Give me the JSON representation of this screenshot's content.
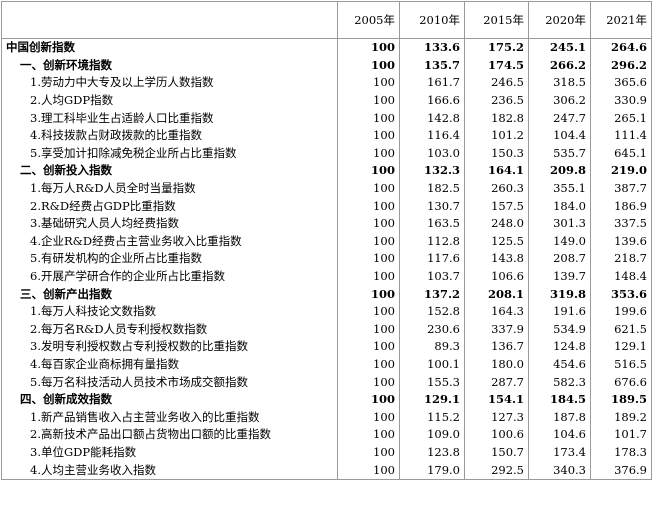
{
  "table": {
    "header": [
      "2005年",
      "2010年",
      "2015年",
      "2020年",
      "2021年"
    ],
    "rows": [
      [
        "中国创新指数",
        "100",
        "133.6",
        "175.2",
        "245.1",
        "264.6"
      ],
      [
        "一、创新环境指数",
        "100",
        "135.7",
        "174.5",
        "266.2",
        "296.2"
      ],
      [
        "1.劳动力中大专及以上学历人数指数",
        "100",
        "161.7",
        "246.5",
        "318.5",
        "365.6"
      ],
      [
        "2.人均GDP指数",
        "100",
        "166.6",
        "236.5",
        "306.2",
        "330.9"
      ],
      [
        "3.理工科毕业生占适龄人口比重指数",
        "100",
        "142.8",
        "182.8",
        "247.7",
        "265.1"
      ],
      [
        "4.科技拨款占财政拨款的比重指数",
        "100",
        "116.4",
        "101.2",
        "104.4",
        "111.4"
      ],
      [
        "5.享受加计扣除减免税企业所占比重指数",
        "100",
        "103.0",
        "150.3",
        "535.7",
        "645.1"
      ],
      [
        "二、创新投入指数",
        "100",
        "132.3",
        "164.1",
        "209.8",
        "219.0"
      ],
      [
        "1.每万人R&D人员全时当量指数",
        "100",
        "182.5",
        "260.3",
        "355.1",
        "387.7"
      ],
      [
        "2.R&D经费占GDP比重指数",
        "100",
        "130.7",
        "157.5",
        "184.0",
        "186.9"
      ],
      [
        "3.基础研究人员人均经费指数",
        "100",
        "163.5",
        "248.0",
        "301.3",
        "337.5"
      ],
      [
        "4.企业R&D经费占主营业务收入比重指数",
        "100",
        "112.8",
        "125.5",
        "149.0",
        "139.6"
      ],
      [
        "5.有研发机构的企业所占比重指数",
        "100",
        "117.6",
        "143.8",
        "208.7",
        "218.7"
      ],
      [
        "6.开展产学研合作的企业所占比重指数",
        "100",
        "103.7",
        "106.6",
        "139.7",
        "148.4"
      ],
      [
        "三、创新产出指数",
        "100",
        "137.2",
        "208.1",
        "319.8",
        "353.6"
      ],
      [
        "1.每万人科技论文数指数",
        "100",
        "152.8",
        "164.3",
        "191.6",
        "199.6"
      ],
      [
        "2.每万名R&D人员专利授权数指数",
        "100",
        "230.6",
        "337.9",
        "534.9",
        "621.5"
      ],
      [
        "3.发明专利授权数占专利授权数的比重指数",
        "100",
        "89.3",
        "136.7",
        "124.8",
        "129.1"
      ],
      [
        "4.每百家企业商标拥有量指数",
        "100",
        "100.1",
        "180.0",
        "454.6",
        "516.5"
      ],
      [
        "5.每万名科技活动人员技术市场成交额指数",
        "100",
        "155.3",
        "287.7",
        "582.3",
        "676.6"
      ],
      [
        "四、创新成效指数",
        "100",
        "129.1",
        "154.1",
        "184.5",
        "189.5"
      ],
      [
        "1.新产品销售收入占主营业务收入的比重指数",
        "100",
        "115.2",
        "127.3",
        "187.8",
        "189.2"
      ],
      [
        "2.高新技术产品出口额占货物出口额的比重指数",
        "100",
        "109.0",
        "100.6",
        "104.6",
        "101.7"
      ],
      [
        "3.单位GDP能耗指数",
        "100",
        "123.8",
        "150.7",
        "173.4",
        "178.3"
      ],
      [
        "4.人均主营业务收入指数",
        "100",
        "179.0",
        "292.5",
        "340.3",
        "376.9"
      ]
    ]
  }
}
